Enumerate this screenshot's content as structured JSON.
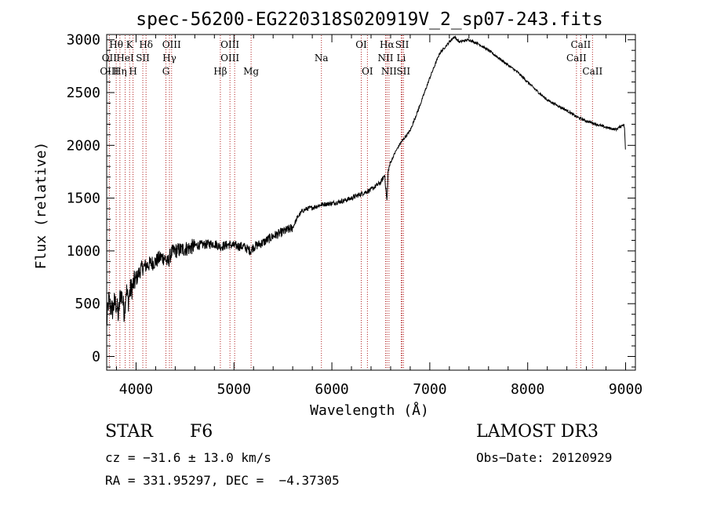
{
  "chart_data": {
    "type": "line",
    "title": "spec-56200-EG220318S020919V_2_sp07-243.fits",
    "xlabel": "Wavelength (Å)",
    "ylabel": "Flux (relative)",
    "xlim": [
      3700,
      9100
    ],
    "ylim": [
      -130,
      3050
    ],
    "xticks": [
      4000,
      5000,
      6000,
      7000,
      8000,
      9000
    ],
    "yticks": [
      0,
      500,
      1000,
      1500,
      2000,
      2500,
      3000
    ],
    "xtick_labels": [
      "4000",
      "5000",
      "6000",
      "7000",
      "8000",
      "9000"
    ],
    "ytick_labels": [
      "0",
      "500",
      "1000",
      "1500",
      "2000",
      "2500",
      "3000"
    ],
    "series": [
      {
        "name": "flux",
        "x": [
          3700,
          3720,
          3740,
          3760,
          3780,
          3800,
          3820,
          3840,
          3860,
          3880,
          3900,
          3920,
          3940,
          3960,
          3980,
          4000,
          4050,
          4100,
          4150,
          4200,
          4250,
          4300,
          4320,
          4340,
          4360,
          4400,
          4450,
          4500,
          4550,
          4600,
          4700,
          4800,
          4860,
          4900,
          4950,
          5000,
          5100,
          5170,
          5200,
          5300,
          5400,
          5500,
          5600,
          5650,
          5700,
          5750,
          5800,
          5900,
          6000,
          6100,
          6200,
          6300,
          6400,
          6500,
          6540,
          6550,
          6563,
          6575,
          6600,
          6650,
          6700,
          6800,
          6900,
          7000,
          7100,
          7200,
          7250,
          7300,
          7400,
          7500,
          7600,
          7700,
          7800,
          7900,
          8000,
          8100,
          8200,
          8300,
          8400,
          8500,
          8600,
          8700,
          8800,
          8900,
          8950,
          8980,
          8990,
          9000
        ],
        "y": [
          300,
          530,
          470,
          440,
          510,
          490,
          380,
          600,
          560,
          410,
          640,
          520,
          630,
          650,
          700,
          730,
          830,
          860,
          880,
          900,
          940,
          930,
          880,
          930,
          980,
          1000,
          1010,
          1020,
          1030,
          1050,
          1060,
          1070,
          1040,
          1050,
          1060,
          1050,
          1040,
          1000,
          1040,
          1080,
          1140,
          1180,
          1220,
          1320,
          1380,
          1400,
          1410,
          1440,
          1450,
          1470,
          1500,
          1540,
          1580,
          1650,
          1720,
          1600,
          1470,
          1760,
          1840,
          1940,
          2020,
          2140,
          2380,
          2640,
          2870,
          2980,
          3030,
          2980,
          3000,
          2960,
          2900,
          2830,
          2760,
          2690,
          2600,
          2510,
          2430,
          2380,
          2330,
          2270,
          2230,
          2200,
          2170,
          2150,
          2180,
          2200,
          2160,
          1900
        ]
      }
    ],
    "line_labels": [
      {
        "text": "Hθ",
        "x": 3797,
        "row": 1
      },
      {
        "text": "OII",
        "x": 3727,
        "row": 2
      },
      {
        "text": "OIII",
        "x": 3727,
        "row": 3
      },
      {
        "text": "K",
        "x": 3934,
        "row": 1
      },
      {
        "text": "HeI",
        "x": 3889,
        "row": 2
      },
      {
        "text": "Hη",
        "x": 3835,
        "row": 3
      },
      {
        "text": "Hδ",
        "x": 4102,
        "row": 1
      },
      {
        "text": "SII",
        "x": 4069,
        "row": 2
      },
      {
        "text": "H",
        "x": 3969,
        "row": 3
      },
      {
        "text": "OIII",
        "x": 4363,
        "row": 1
      },
      {
        "text": "Hγ",
        "x": 4341,
        "row": 2
      },
      {
        "text": "G",
        "x": 4305,
        "row": 3
      },
      {
        "text": "OIII",
        "x": 4959,
        "row": 1
      },
      {
        "text": "OIII",
        "x": 4959,
        "row": 2
      },
      {
        "text": "Hβ",
        "x": 4861,
        "row": 3
      },
      {
        "text": "Mg",
        "x": 5175,
        "row": 3
      },
      {
        "text": "Na",
        "x": 5893,
        "row": 2
      },
      {
        "text": "OI",
        "x": 6300,
        "row": 1
      },
      {
        "text": "OI",
        "x": 6363,
        "row": 3
      },
      {
        "text": "Hα",
        "x": 6563,
        "row": 1
      },
      {
        "text": "SII",
        "x": 6717,
        "row": 1
      },
      {
        "text": "NII",
        "x": 6548,
        "row": 2
      },
      {
        "text": "Li",
        "x": 6708,
        "row": 2
      },
      {
        "text": "NII",
        "x": 6583,
        "row": 3
      },
      {
        "text": "SII",
        "x": 6731,
        "row": 3
      },
      {
        "text": "CaII",
        "x": 8542,
        "row": 1
      },
      {
        "text": "CaII",
        "x": 8498,
        "row": 2
      },
      {
        "text": "CaII",
        "x": 8662,
        "row": 3
      }
    ],
    "line_positions": [
      3727,
      3797,
      3835,
      3889,
      3934,
      3969,
      4069,
      4102,
      4305,
      4341,
      4363,
      4861,
      4959,
      5007,
      5175,
      5893,
      6300,
      6363,
      6548,
      6563,
      6583,
      6708,
      6717,
      6731,
      8498,
      8542,
      8662
    ],
    "line_color": "#b22222"
  },
  "info": {
    "object_class": "STAR",
    "subclass": "F6",
    "survey": "LAMOST DR3",
    "cz": "cz = −31.6 ± 13.0 km/s",
    "obs_date": "Obs−Date: 20120929",
    "coords": "RA = 331.95297, DEC =  −4.37305"
  }
}
